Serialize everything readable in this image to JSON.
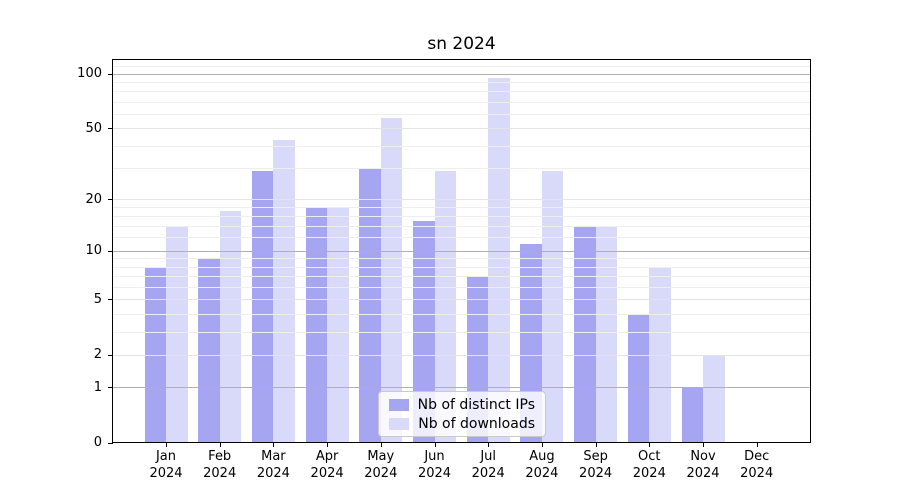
{
  "chart_data": {
    "type": "bar",
    "title": "sn 2024",
    "categories": [
      "Jan",
      "Feb",
      "Mar",
      "Apr",
      "May",
      "Jun",
      "Jul",
      "Aug",
      "Sep",
      "Oct",
      "Nov",
      "Dec"
    ],
    "category_year": "2024",
    "series": [
      {
        "name": "Nb of distinct IPs",
        "color": "#a5a5f2",
        "values": [
          8,
          9,
          29,
          18,
          30,
          15,
          7,
          11,
          14,
          4,
          1,
          0
        ]
      },
      {
        "name": "Nb of downloads",
        "color": "#d9d9f9",
        "values": [
          14,
          17,
          43,
          18,
          57,
          29,
          94,
          29,
          14,
          8,
          2,
          0
        ]
      }
    ],
    "y_axis": {
      "scale": "log10(1+y)",
      "tick_labels": [
        100,
        50,
        20,
        10,
        5,
        2,
        1,
        0
      ],
      "ylim": [
        0,
        119
      ]
    },
    "gridlines": {
      "grid_on": true,
      "major": [
        1,
        10,
        100
      ],
      "labeled_minor": [
        2,
        5,
        20,
        50
      ],
      "minor": [
        3,
        4,
        6,
        7,
        8,
        9,
        12,
        14,
        16,
        18,
        30,
        40,
        60,
        70,
        80,
        90,
        110
      ]
    },
    "legend": {
      "position": "lower center"
    }
  }
}
